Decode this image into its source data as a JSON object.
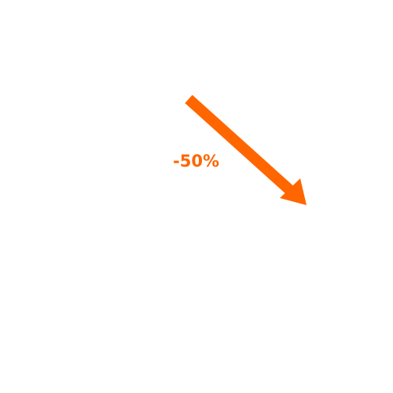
{
  "indicator": {
    "label": "-50%",
    "direction": "down",
    "color": "#ff6600",
    "icon": "diagonal-down-arrow-icon"
  }
}
